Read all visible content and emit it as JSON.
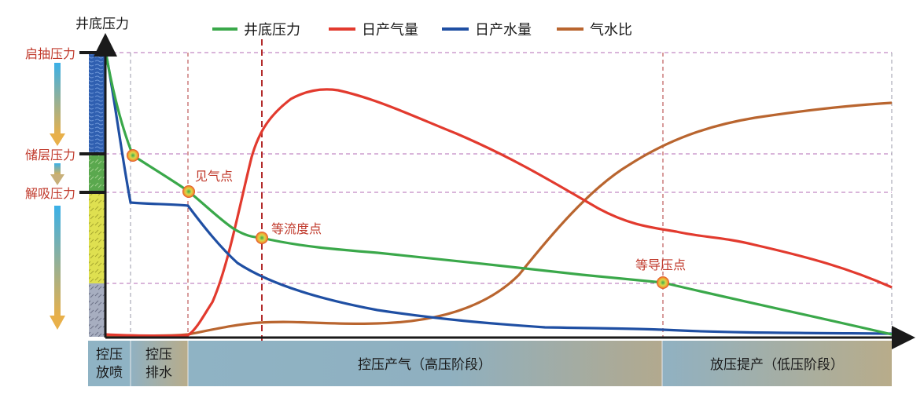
{
  "chart_data": {
    "type": "line",
    "ylabel": "井底压力",
    "legend": [
      {
        "name": "井底压力",
        "color": "#3aa84a"
      },
      {
        "name": "日产气量",
        "color": "#e23a2e"
      },
      {
        "name": "日产水量",
        "color": "#1f4fa3"
      },
      {
        "name": "气水比",
        "color": "#b9652f"
      }
    ],
    "y_levels": [
      {
        "label": "启抽压力",
        "color": "#c0392b"
      },
      {
        "label": "储层压力",
        "color": "#c0392b"
      },
      {
        "label": "解吸压力",
        "color": "#c0392b"
      }
    ],
    "annotations": [
      {
        "label": "见气点",
        "on": "井底压力"
      },
      {
        "label": "等流度点",
        "on": "井底压力"
      },
      {
        "label": "等导压点",
        "on": "井底压力"
      }
    ],
    "stages": [
      {
        "line1": "控压",
        "line2": "放喷"
      },
      {
        "line1": "控压",
        "line2": "排水"
      },
      {
        "line1": "控压产气（高压阶段）",
        "line2": ""
      },
      {
        "line1": "放压提产（低压阶段）",
        "line2": ""
      }
    ],
    "grid": "dashed",
    "legend_position": "top",
    "values_note": "conceptual schematic; curves shown without numeric scale"
  }
}
